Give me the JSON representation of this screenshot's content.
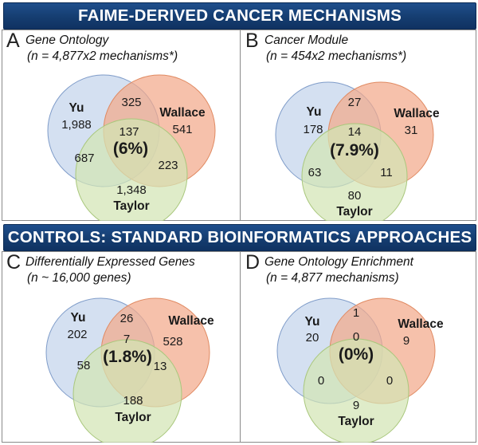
{
  "header": {
    "title": "FAIME-DERIVED CANCER MECHANISMS"
  },
  "section2": {
    "title": "CONTROLS: STANDARD BIOINFORMATICS APPROACHES"
  },
  "colors": {
    "banner": "#173f73",
    "yu": "#c6d5ec",
    "wallace": "#f3a98a",
    "taylor": "#d3e5b4"
  },
  "panels": [
    {
      "letter": "A",
      "title": "Gene Ontology",
      "subtitle": "(n = 4,877x2 mechanisms*)",
      "sets": {
        "a": "Yu",
        "b": "Wallace",
        "c": "Taylor"
      },
      "counts": {
        "a": "1,988",
        "ab": "325",
        "b": "541",
        "abc": "137",
        "ac": "687",
        "bc": "223",
        "c": "1,348"
      },
      "percent": "(6%)"
    },
    {
      "letter": "B",
      "title": "Cancer Module",
      "subtitle": "(n = 454x2 mechanisms*)",
      "sets": {
        "a": "Yu",
        "b": "Wallace",
        "c": "Taylor"
      },
      "counts": {
        "a": "178",
        "ab": "27",
        "b": "31",
        "abc": "14",
        "ac": "63",
        "bc": "11",
        "c": "80"
      },
      "percent": "(7.9%)"
    },
    {
      "letter": "C",
      "title": "Differentially Expressed Genes",
      "subtitle": "(n ~ 16,000 genes)",
      "sets": {
        "a": "Yu",
        "b": "Wallace",
        "c": "Taylor"
      },
      "counts": {
        "a": "202",
        "ab": "26",
        "b": "528",
        "abc": "7",
        "ac": "58",
        "bc": "13",
        "c": "188"
      },
      "percent": "(1.8%)"
    },
    {
      "letter": "D",
      "title": "Gene Ontology Enrichment",
      "subtitle": "(n = 4,877 mechanisms)",
      "sets": {
        "a": "Yu",
        "b": "Wallace",
        "c": "Taylor"
      },
      "counts": {
        "a": "20",
        "ab": "1",
        "b": "9",
        "abc": "0",
        "ac": "0",
        "bc": "0",
        "c": "9"
      },
      "percent": "(0%)"
    }
  ]
}
